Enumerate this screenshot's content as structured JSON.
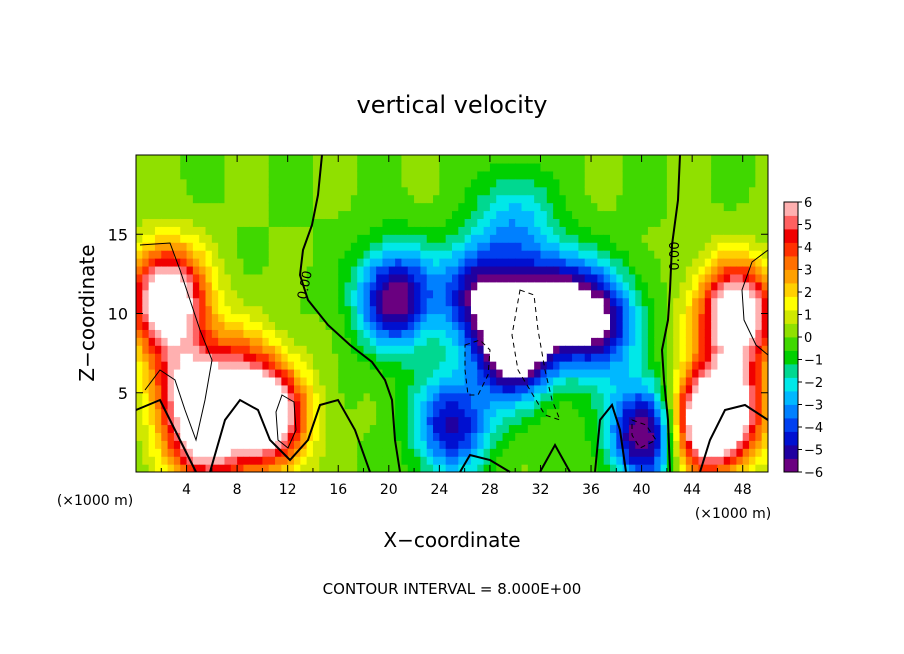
{
  "chart_data": {
    "type": "heatmap",
    "title": "vertical velocity",
    "xlabel": "X−coordinate",
    "ylabel": "Z−coordinate",
    "x_unit_left": "(×1000 m)",
    "x_unit_right": "(×1000 m)",
    "xlim": [
      0,
      50
    ],
    "ylim": [
      0,
      20
    ],
    "xticks": [
      4,
      8,
      12,
      16,
      20,
      24,
      28,
      32,
      36,
      40,
      44,
      48
    ],
    "yticks": [
      5,
      10,
      15
    ],
    "colorbar": {
      "ticks": [
        "6",
        "5",
        "4",
        "3",
        "2",
        "1",
        "0",
        "−1",
        "−2",
        "−3",
        "−4",
        "−5",
        "−6"
      ],
      "range": [
        -6,
        6
      ],
      "colors": [
        "#6a0080",
        "#2000a0",
        "#0010d0",
        "#0040f0",
        "#0080ff",
        "#00b8ff",
        "#00e8e8",
        "#00d890",
        "#00d000",
        "#40d800",
        "#90e000",
        "#d0e800",
        "#ffff00",
        "#ffd000",
        "#ffa000",
        "#ff7000",
        "#ff3000",
        "#f00000",
        "#ff6060",
        "#ffb0b0"
      ]
    },
    "contour_labels": [
      "0.00",
      "0.00"
    ],
    "footer": "CONTOUR INTERVAL = 8.000E+00",
    "features": [
      {
        "x": 2.5,
        "z": 11,
        "w": 8.0
      },
      {
        "x": 4.0,
        "z": 5.5,
        "w": 5.0
      },
      {
        "x": 5.5,
        "z": 2.0,
        "w": 6.0
      },
      {
        "x": 10.5,
        "z": 3.5,
        "w": 7.5
      },
      {
        "x": 8.0,
        "z": 6.0,
        "w": 3.5
      },
      {
        "x": 47.5,
        "z": 10.0,
        "w": 8.0
      },
      {
        "x": 44.5,
        "z": 3.0,
        "w": 7.0
      },
      {
        "x": 47.0,
        "z": 4.0,
        "w": 6.0
      },
      {
        "x": 30.0,
        "z": 8.0,
        "w": -8.0
      },
      {
        "x": 27.0,
        "z": 11.5,
        "w": -5.0
      },
      {
        "x": 33.0,
        "z": 11.0,
        "w": -5.0
      },
      {
        "x": 20.5,
        "z": 11.0,
        "w": -6.0
      },
      {
        "x": 36.5,
        "z": 9.5,
        "w": -6.0
      },
      {
        "x": 40.5,
        "z": 2.5,
        "w": -7.0
      },
      {
        "x": 25.0,
        "z": 3.0,
        "w": -5.0
      },
      {
        "x": 30.0,
        "z": 16.0,
        "w": -2.5
      }
    ]
  }
}
